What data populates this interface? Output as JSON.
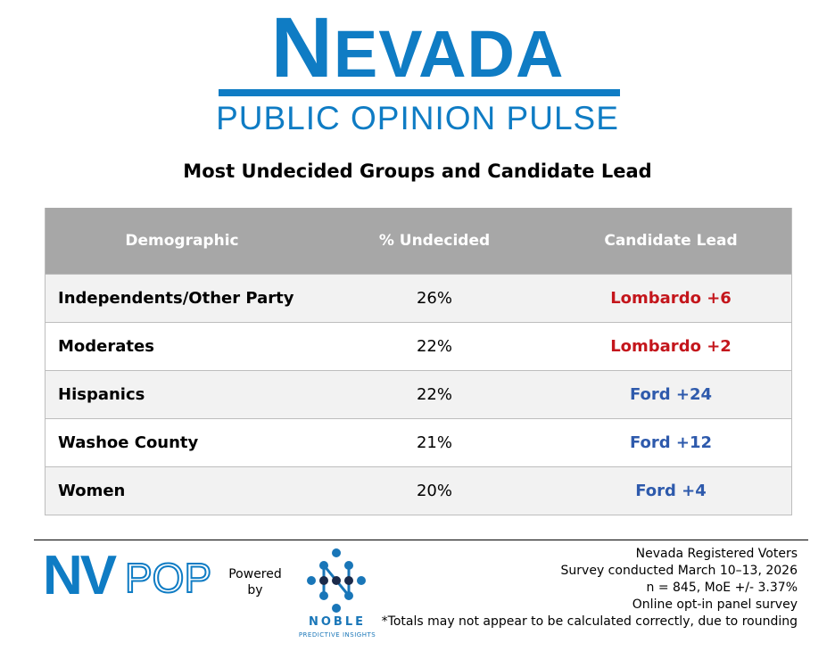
{
  "header": {
    "logo_first_letter": "N",
    "logo_rest": "EVADA",
    "logo_subtitle": "PUBLIC OPINION PULSE"
  },
  "colors": {
    "brand_blue": "#0f7cc4",
    "lombardo_red": "#c4161c",
    "ford_blue": "#2e5aac",
    "header_gray": "#a7a7a7"
  },
  "chart_data": {
    "type": "table",
    "title": "Most Undecided Groups and Candidate Lead",
    "columns": [
      "Demographic",
      "% Undecided",
      "Candidate Lead"
    ],
    "rows": [
      {
        "demographic": "Independents/Other Party",
        "undecided": "26%",
        "lead": "Lombardo +6",
        "lead_party": "lombardo"
      },
      {
        "demographic": "Moderates",
        "undecided": "22%",
        "lead": "Lombardo +2",
        "lead_party": "lombardo"
      },
      {
        "demographic": "Hispanics",
        "undecided": "22%",
        "lead": "Ford +24",
        "lead_party": "ford"
      },
      {
        "demographic": "Washoe County",
        "undecided": "21%",
        "lead": "Ford +12",
        "lead_party": "ford"
      },
      {
        "demographic": "Women",
        "undecided": "20%",
        "lead": "Ford +4",
        "lead_party": "ford"
      }
    ]
  },
  "footer": {
    "nvpop_logo": "NVPOP",
    "powered_by": [
      "Powered",
      "by"
    ],
    "noble_name": "NOBLE",
    "noble_tagline": "PREDICTIVE INSIGHTS",
    "notes": [
      "Nevada Registered Voters",
      "Survey conducted March 10–13, 2026",
      "n = 845, MoE +/- 3.37%",
      "Online opt-in panel survey",
      "*Totals may not appear to be calculated correctly, due to rounding"
    ]
  }
}
